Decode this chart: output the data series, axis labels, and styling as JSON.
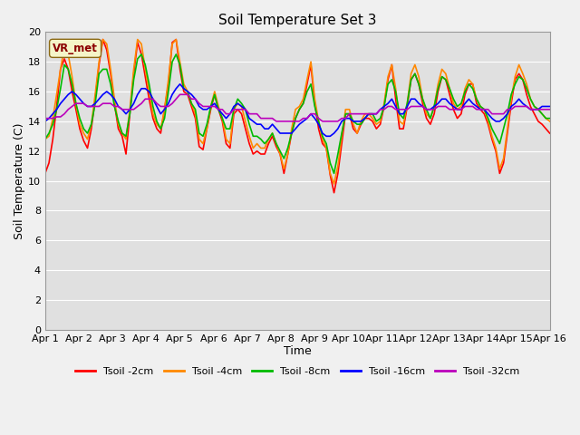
{
  "title": "Soil Temperature Set 3",
  "xlabel": "Time",
  "ylabel": "Soil Temperature (C)",
  "ylim": [
    0,
    20
  ],
  "yticks": [
    0,
    2,
    4,
    6,
    8,
    10,
    12,
    14,
    16,
    18,
    20
  ],
  "x_labels": [
    "Apr 1",
    "Apr 2",
    "Apr 3",
    "Apr 4",
    "Apr 5",
    "Apr 6",
    "Apr 7",
    "Apr 8",
    "Apr 9",
    "Apr 10",
    "Apr 11",
    "Apr 12",
    "Apr 13",
    "Apr 14",
    "Apr 15",
    "Apr 16"
  ],
  "annotation_text": "VR_met",
  "bg_color": "#e8e8e8",
  "plot_bg_color": "#e0e0e0",
  "grid_color": "#ffffff",
  "lines": {
    "Tsoil -2cm": {
      "color": "#ff0000",
      "lw": 1.2
    },
    "Tsoil -4cm": {
      "color": "#ff8800",
      "lw": 1.2
    },
    "Tsoil -8cm": {
      "color": "#00bb00",
      "lw": 1.2
    },
    "Tsoil -16cm": {
      "color": "#0000ff",
      "lw": 1.2
    },
    "Tsoil -32cm": {
      "color": "#bb00bb",
      "lw": 1.2
    }
  },
  "tsoil_2cm": [
    10.5,
    11.2,
    12.8,
    15.0,
    17.5,
    18.2,
    17.5,
    16.0,
    14.8,
    13.5,
    12.7,
    12.2,
    13.5,
    15.5,
    17.8,
    19.5,
    18.8,
    17.2,
    15.2,
    13.5,
    13.0,
    11.8,
    14.5,
    17.2,
    19.3,
    18.5,
    17.0,
    15.5,
    14.2,
    13.5,
    13.2,
    14.8,
    16.5,
    19.3,
    19.5,
    17.5,
    16.0,
    15.8,
    15.0,
    14.2,
    12.3,
    12.1,
    13.5,
    14.8,
    15.8,
    14.8,
    14.0,
    12.5,
    12.2,
    14.5,
    14.8,
    14.5,
    13.5,
    12.5,
    11.8,
    12.0,
    11.8,
    11.8,
    12.5,
    13.0,
    12.3,
    11.8,
    10.5,
    11.8,
    13.2,
    14.2,
    14.8,
    15.2,
    16.5,
    17.8,
    15.2,
    13.5,
    12.5,
    12.2,
    10.4,
    9.2,
    10.5,
    12.5,
    14.5,
    14.5,
    13.5,
    13.2,
    13.8,
    14.2,
    14.2,
    14.0,
    13.5,
    13.8,
    15.0,
    16.8,
    17.8,
    15.5,
    13.5,
    13.5,
    15.0,
    16.8,
    17.2,
    16.5,
    15.2,
    14.2,
    13.8,
    14.5,
    16.0,
    17.0,
    16.8,
    15.8,
    14.8,
    14.2,
    14.5,
    15.8,
    16.5,
    16.5,
    15.2,
    14.8,
    14.5,
    13.8,
    12.8,
    12.0,
    10.5,
    11.2,
    13.2,
    15.2,
    16.8,
    17.2,
    16.8,
    15.8,
    15.0,
    14.5,
    14.0,
    13.8,
    13.5,
    13.2
  ],
  "tsoil_4cm": [
    12.8,
    13.0,
    14.2,
    15.8,
    17.5,
    19.0,
    18.5,
    17.0,
    15.2,
    13.8,
    13.2,
    12.8,
    13.8,
    15.8,
    18.0,
    19.5,
    19.2,
    17.5,
    15.5,
    13.8,
    13.2,
    12.8,
    14.8,
    17.5,
    19.5,
    19.2,
    17.5,
    16.0,
    14.5,
    13.8,
    13.5,
    14.8,
    16.8,
    19.2,
    19.5,
    18.0,
    16.5,
    16.0,
    15.2,
    14.5,
    12.8,
    12.5,
    13.5,
    15.0,
    16.0,
    15.0,
    14.2,
    12.8,
    12.5,
    14.8,
    15.2,
    15.0,
    14.0,
    13.0,
    12.2,
    12.5,
    12.2,
    12.2,
    12.8,
    13.2,
    12.5,
    11.8,
    10.8,
    11.8,
    13.5,
    14.8,
    15.0,
    15.5,
    16.8,
    18.0,
    15.5,
    14.0,
    12.8,
    12.2,
    10.5,
    9.8,
    11.0,
    13.0,
    14.8,
    14.8,
    13.8,
    13.2,
    14.0,
    14.5,
    14.5,
    14.2,
    13.8,
    14.0,
    15.2,
    17.0,
    17.8,
    16.2,
    14.0,
    13.8,
    15.2,
    17.2,
    17.8,
    17.0,
    15.5,
    14.5,
    14.2,
    15.0,
    16.5,
    17.5,
    17.2,
    16.2,
    15.2,
    14.8,
    15.0,
    16.2,
    16.8,
    16.5,
    15.5,
    15.0,
    14.8,
    14.0,
    13.0,
    12.2,
    10.8,
    11.5,
    13.5,
    15.5,
    17.0,
    17.8,
    17.2,
    16.5,
    15.5,
    15.0,
    14.8,
    14.5,
    14.2,
    14.0
  ],
  "tsoil_8cm": [
    12.8,
    13.2,
    13.8,
    14.8,
    16.2,
    17.8,
    17.5,
    16.5,
    15.2,
    14.2,
    13.5,
    13.2,
    13.8,
    15.2,
    17.2,
    17.5,
    17.5,
    16.5,
    15.0,
    14.0,
    13.2,
    13.0,
    14.5,
    16.8,
    18.2,
    18.5,
    17.8,
    16.5,
    15.0,
    14.0,
    13.5,
    14.2,
    16.0,
    18.0,
    18.5,
    17.8,
    16.2,
    16.0,
    15.2,
    14.8,
    13.2,
    13.0,
    13.8,
    15.0,
    15.8,
    14.8,
    14.2,
    13.5,
    13.5,
    14.8,
    15.5,
    15.2,
    14.8,
    13.8,
    13.0,
    13.0,
    12.8,
    12.5,
    12.8,
    13.2,
    12.5,
    12.0,
    11.5,
    12.2,
    13.2,
    14.2,
    14.8,
    15.2,
    16.0,
    16.5,
    15.0,
    14.0,
    13.0,
    12.5,
    11.2,
    10.5,
    11.8,
    13.2,
    14.5,
    14.5,
    14.0,
    13.8,
    13.8,
    14.2,
    14.5,
    14.5,
    14.0,
    14.2,
    15.0,
    16.5,
    16.8,
    16.0,
    14.5,
    14.2,
    15.2,
    16.8,
    17.2,
    16.5,
    15.5,
    14.8,
    14.2,
    15.0,
    16.2,
    17.0,
    16.8,
    16.2,
    15.5,
    15.0,
    15.2,
    16.0,
    16.5,
    16.2,
    15.5,
    15.0,
    14.8,
    14.2,
    13.5,
    13.0,
    12.5,
    13.5,
    14.5,
    15.8,
    16.5,
    17.0,
    16.8,
    16.2,
    15.5,
    15.0,
    14.8,
    14.5,
    14.2,
    14.2
  ],
  "tsoil_16cm": [
    14.0,
    14.2,
    14.5,
    14.8,
    15.2,
    15.5,
    15.8,
    16.0,
    15.8,
    15.5,
    15.2,
    15.0,
    15.0,
    15.2,
    15.5,
    15.8,
    16.0,
    15.8,
    15.5,
    15.0,
    14.8,
    14.5,
    14.8,
    15.2,
    15.8,
    16.2,
    16.2,
    16.0,
    15.5,
    15.0,
    14.5,
    14.8,
    15.2,
    15.8,
    16.2,
    16.5,
    16.2,
    16.0,
    15.8,
    15.5,
    15.0,
    14.8,
    14.8,
    15.0,
    15.2,
    14.8,
    14.5,
    14.2,
    14.5,
    15.0,
    15.2,
    15.0,
    14.8,
    14.2,
    14.0,
    13.8,
    13.8,
    13.5,
    13.5,
    13.8,
    13.5,
    13.2,
    13.2,
    13.2,
    13.2,
    13.5,
    13.8,
    14.0,
    14.2,
    14.5,
    14.2,
    13.8,
    13.2,
    13.0,
    13.0,
    13.2,
    13.5,
    14.0,
    14.2,
    14.2,
    14.0,
    14.0,
    14.0,
    14.2,
    14.5,
    14.5,
    14.5,
    14.8,
    15.0,
    15.2,
    15.5,
    15.0,
    14.5,
    14.5,
    15.0,
    15.5,
    15.5,
    15.2,
    15.0,
    14.8,
    14.8,
    15.0,
    15.2,
    15.5,
    15.5,
    15.2,
    15.0,
    14.8,
    14.8,
    15.2,
    15.5,
    15.2,
    15.0,
    14.8,
    14.8,
    14.5,
    14.2,
    14.0,
    14.0,
    14.2,
    14.5,
    15.0,
    15.2,
    15.5,
    15.2,
    15.0,
    14.8,
    14.8,
    14.8,
    15.0,
    15.0,
    15.0
  ],
  "tsoil_32cm": [
    14.2,
    14.2,
    14.2,
    14.3,
    14.3,
    14.5,
    14.8,
    15.0,
    15.2,
    15.2,
    15.2,
    15.0,
    15.0,
    15.0,
    15.0,
    15.2,
    15.2,
    15.2,
    15.0,
    15.0,
    14.8,
    14.8,
    14.8,
    14.8,
    15.0,
    15.2,
    15.5,
    15.5,
    15.5,
    15.2,
    15.0,
    15.0,
    15.0,
    15.2,
    15.5,
    15.8,
    15.8,
    15.8,
    15.5,
    15.5,
    15.2,
    15.0,
    15.0,
    15.0,
    15.0,
    14.8,
    14.8,
    14.5,
    14.5,
    14.8,
    14.8,
    14.8,
    14.8,
    14.5,
    14.5,
    14.5,
    14.2,
    14.2,
    14.2,
    14.2,
    14.0,
    14.0,
    14.0,
    14.0,
    14.0,
    14.0,
    14.0,
    14.2,
    14.2,
    14.5,
    14.5,
    14.2,
    14.0,
    14.0,
    14.0,
    14.0,
    14.0,
    14.2,
    14.2,
    14.5,
    14.5,
    14.5,
    14.5,
    14.5,
    14.5,
    14.5,
    14.5,
    14.8,
    14.8,
    15.0,
    15.0,
    14.8,
    14.8,
    14.8,
    14.8,
    15.0,
    15.0,
    15.0,
    15.0,
    14.8,
    14.8,
    14.8,
    15.0,
    15.0,
    15.0,
    14.8,
    14.8,
    14.8,
    14.8,
    15.0,
    15.0,
    15.0,
    14.8,
    14.8,
    14.8,
    14.8,
    14.5,
    14.5,
    14.5,
    14.5,
    14.8,
    14.8,
    15.0,
    15.0,
    15.0,
    15.0,
    14.8,
    14.8,
    14.8,
    14.8,
    14.8,
    14.8
  ]
}
